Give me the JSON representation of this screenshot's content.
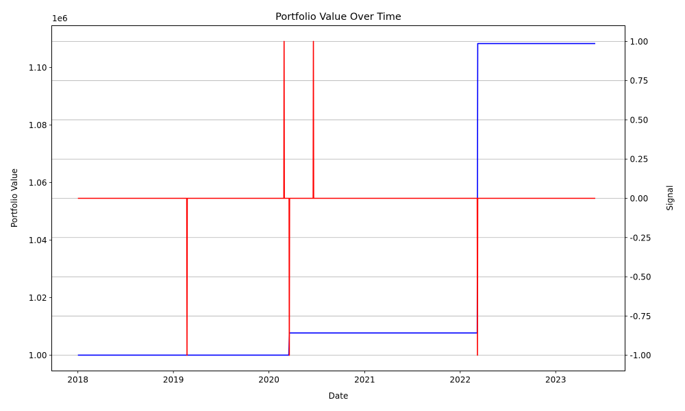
{
  "chart_data": {
    "type": "line",
    "title": "Portfolio Value Over Time",
    "xlabel": "Date",
    "ylabel_left": "Portfolio Value",
    "ylabel_right": "Signal",
    "left_axis_offset_text": "1e6",
    "left_axis": {
      "range": [
        0.9945,
        1.1145
      ],
      "ticks": [
        1.0,
        1.02,
        1.04,
        1.06,
        1.08,
        1.1
      ],
      "tick_labels": [
        "1.00",
        "1.02",
        "1.04",
        "1.06",
        "1.08",
        "1.10"
      ]
    },
    "right_axis": {
      "range": [
        -1.1,
        1.1
      ],
      "ticks": [
        -1.0,
        -0.75,
        -0.5,
        -0.25,
        0.0,
        0.25,
        0.5,
        0.75,
        1.0
      ],
      "tick_labels": [
        "-1.00",
        "-0.75",
        "-0.50",
        "-0.25",
        "0.00",
        "0.25",
        "0.50",
        "0.75",
        "1.00"
      ]
    },
    "x_axis": {
      "range": [
        "2017-09-23",
        "2023-09-23"
      ],
      "ticks": [
        "2018-01-01",
        "2019-01-01",
        "2020-01-01",
        "2021-01-01",
        "2022-01-01",
        "2023-01-01"
      ],
      "tick_labels": [
        "2018",
        "2019",
        "2020",
        "2021",
        "2022",
        "2023"
      ]
    },
    "grid": "horizontal lines at right-axis ticks",
    "series": [
      {
        "color": "#0000ff",
        "axis": "left",
        "x": [
          "2018-01-01",
          "2020-03-17",
          "2020-03-19",
          "2022-03-07",
          "2022-03-09",
          "2023-06-01"
        ],
        "y": [
          1.0,
          1.0,
          1.0077,
          1.0077,
          1.1083,
          1.1083
        ]
      },
      {
        "color": "#ff0000",
        "axis": "right",
        "x": [
          "2018-01-01",
          "2019-02-21",
          "2019-02-22",
          "2019-02-23",
          "2020-02-27",
          "2020-02-28",
          "2020-02-29",
          "2020-03-18",
          "2020-03-19",
          "2020-03-20",
          "2020-06-18",
          "2020-06-19",
          "2020-06-20",
          "2022-03-07",
          "2022-03-08",
          "2022-03-09",
          "2023-06-01"
        ],
        "y": [
          0,
          0,
          -1,
          0,
          0,
          1,
          0,
          0,
          -1,
          0,
          0,
          1,
          0,
          0,
          -1,
          0,
          0
        ]
      }
    ]
  }
}
